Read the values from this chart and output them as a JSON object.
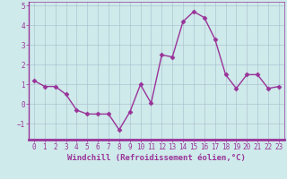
{
  "x": [
    0,
    1,
    2,
    3,
    4,
    5,
    6,
    7,
    8,
    9,
    10,
    11,
    12,
    13,
    14,
    15,
    16,
    17,
    18,
    19,
    20,
    21,
    22,
    23
  ],
  "y": [
    1.2,
    0.9,
    0.9,
    0.5,
    -0.3,
    -0.5,
    -0.5,
    -0.5,
    -1.3,
    -0.4,
    1.0,
    0.05,
    2.5,
    2.4,
    4.2,
    4.7,
    4.4,
    3.3,
    1.5,
    0.8,
    1.5,
    1.5,
    0.8,
    0.9
  ],
  "line_color": "#993399",
  "marker": "D",
  "marker_size": 2.5,
  "linewidth": 1.0,
  "xlabel": "Windchill (Refroidissement éolien,°C)",
  "xlabel_fontsize": 6.5,
  "ylim": [
    -1.8,
    5.2
  ],
  "xlim": [
    -0.5,
    23.5
  ],
  "yticks": [
    -1,
    0,
    1,
    2,
    3,
    4,
    5
  ],
  "xticks": [
    0,
    1,
    2,
    3,
    4,
    5,
    6,
    7,
    8,
    9,
    10,
    11,
    12,
    13,
    14,
    15,
    16,
    17,
    18,
    19,
    20,
    21,
    22,
    23
  ],
  "tick_fontsize": 5.5,
  "bg_color": "#ceeaea",
  "grid_color": "#aabbcc",
  "purple": "#993399"
}
